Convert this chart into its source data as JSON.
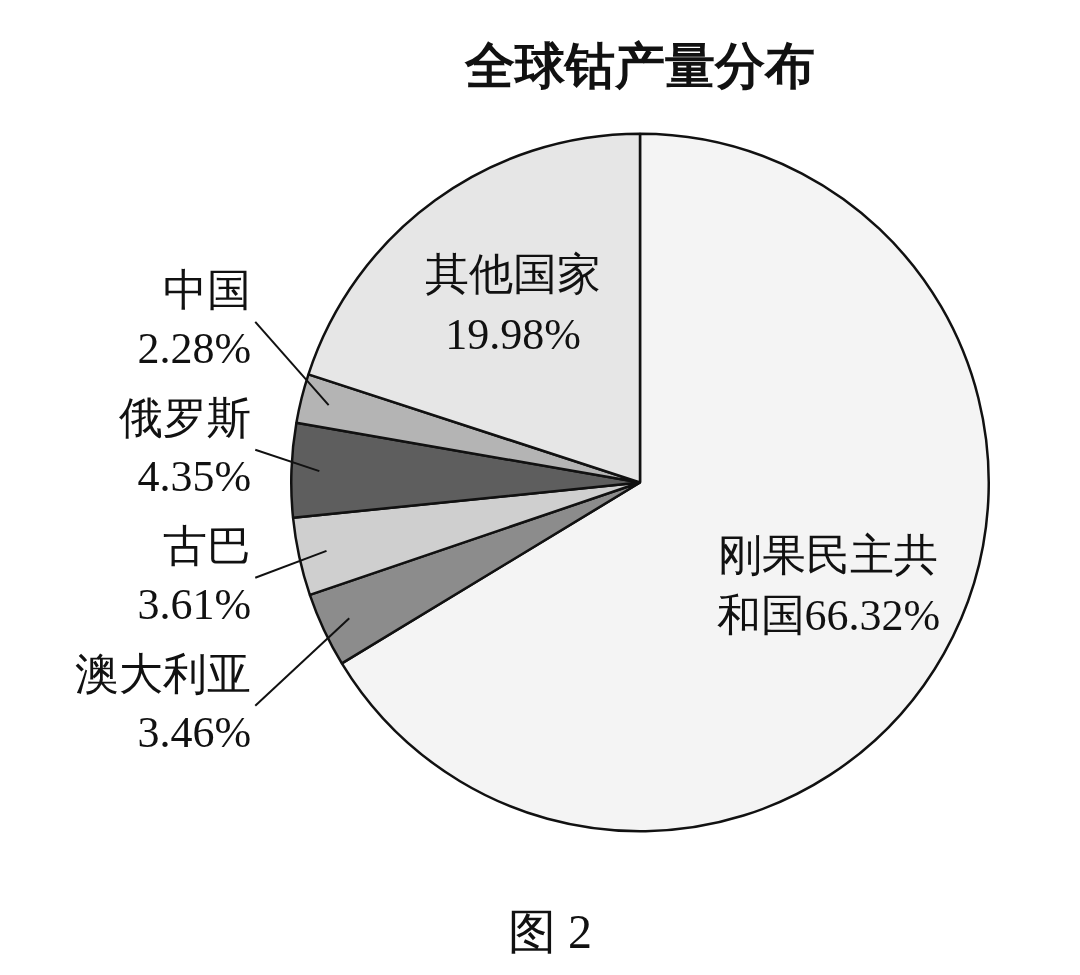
{
  "chart_data": {
    "type": "pie",
    "title": "全球钴产量分布",
    "categories": [
      "刚果民主共和国",
      "澳大利亚",
      "古巴",
      "俄罗斯",
      "中国",
      "其他国家"
    ],
    "values": [
      66.32,
      3.46,
      3.61,
      4.35,
      2.28,
      19.98
    ],
    "value_labels": [
      "66.32%",
      "3.46%",
      "3.61%",
      "4.35%",
      "2.28%",
      "19.98%"
    ],
    "colors": [
      "#f4f4f4",
      "#8c8c8c",
      "#cfcfcf",
      "#5e5e5e",
      "#b4b4b4",
      "#e6e6e6"
    ],
    "legend": false,
    "annotations": [
      "图 2"
    ]
  }
}
